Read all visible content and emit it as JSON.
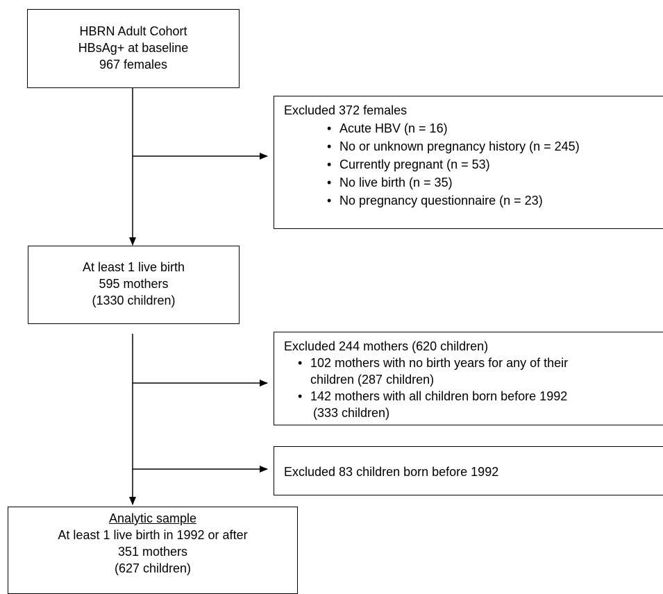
{
  "diagram": {
    "cohort_box": {
      "lines": [
        "HBRN Adult Cohort",
        "HBsAg+ at baseline",
        "967 females"
      ]
    },
    "exclusion_1": {
      "heading": "Excluded 372 females",
      "items": [
        "Acute HBV (n = 16)",
        "No or unknown pregnancy history (n = 245)",
        "Currently pregnant (n = 53)",
        "No live birth (n = 35)",
        "No pregnancy questionnaire (n = 23)"
      ]
    },
    "live_birth_box": {
      "lines": [
        "At least 1 live birth",
        "595 mothers",
        "(1330 children)"
      ]
    },
    "exclusion_2": {
      "heading": "Excluded 244 mothers (620 children)",
      "items": [
        {
          "line1": "102 mothers with no birth years for any of their",
          "line2": "children (287 children)"
        },
        {
          "line1": "142 mothers with all children born before 1992",
          "line2": "(333 children)"
        }
      ]
    },
    "exclusion_3": {
      "text": "Excluded 83 children born before 1992"
    },
    "analytic_box": {
      "title": "Analytic sample",
      "lines": [
        "At least 1 live birth in 1992 or after",
        "351 mothers",
        "(627 children)"
      ]
    },
    "bullet_glyph": "•"
  }
}
